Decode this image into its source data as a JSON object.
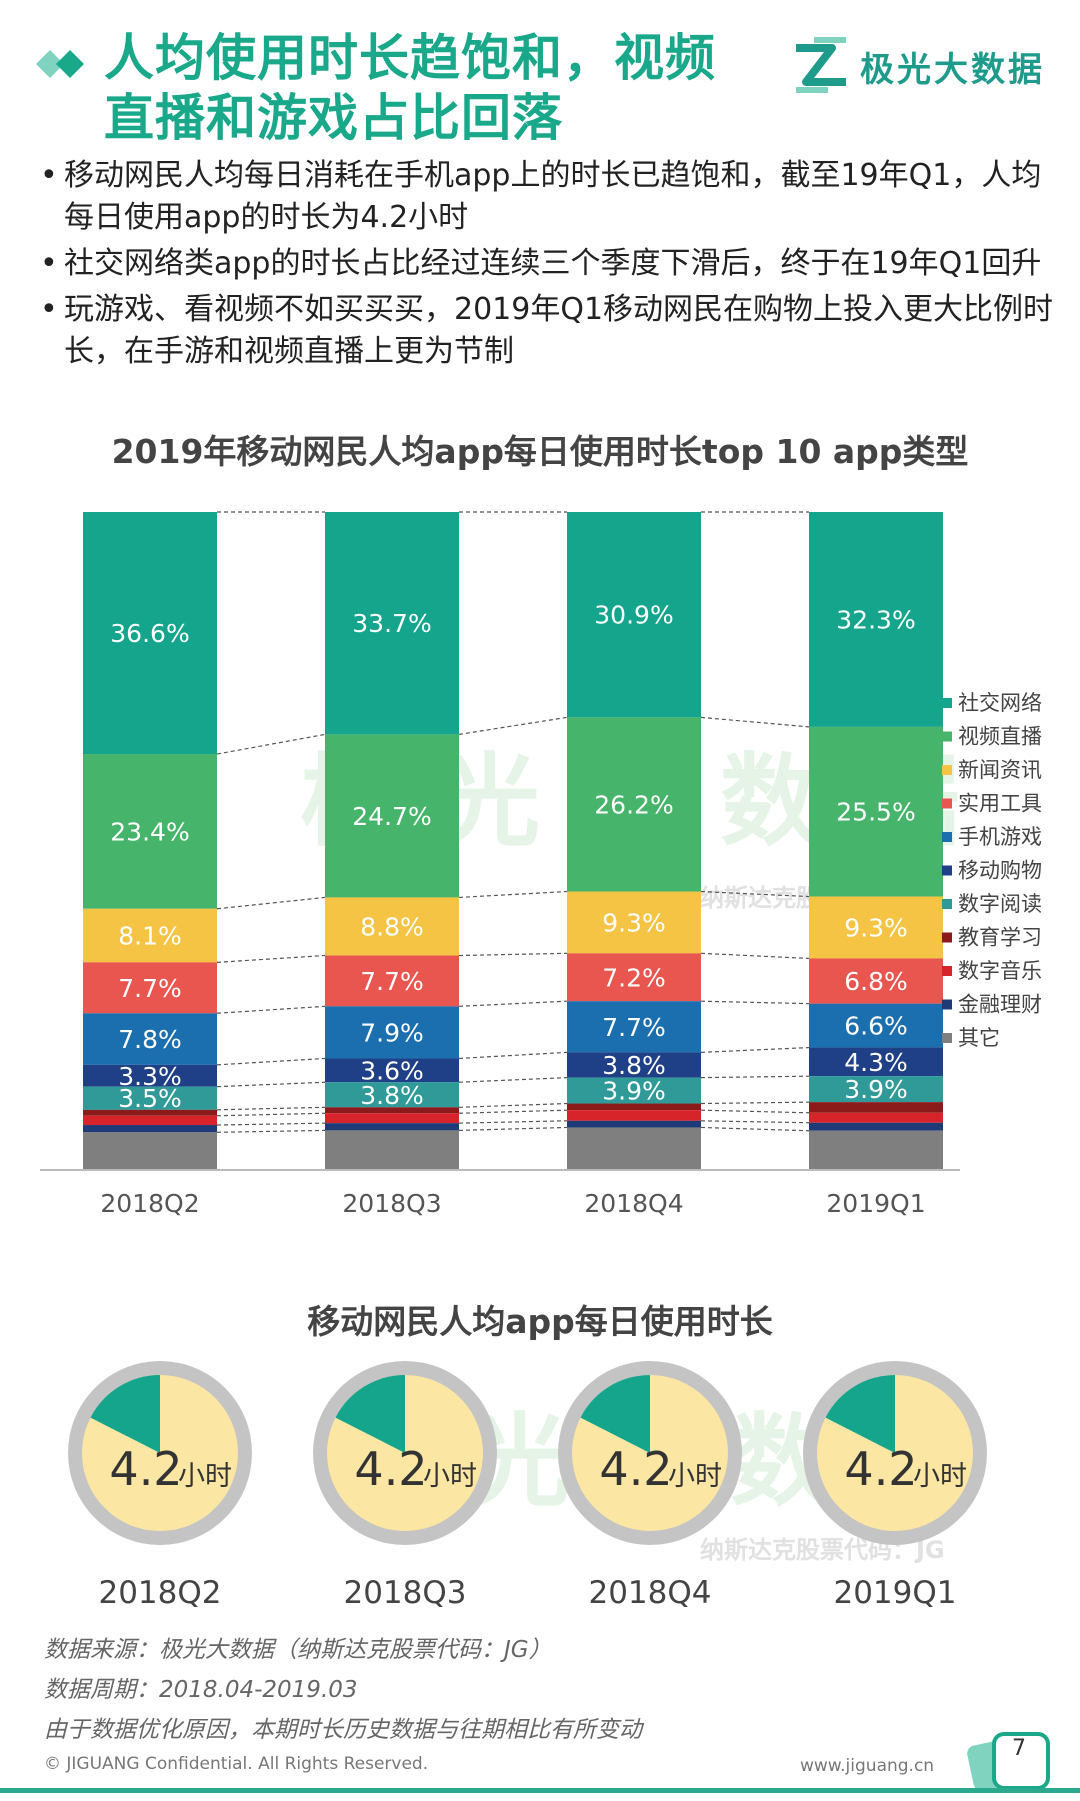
{
  "header": {
    "title_line1": "人均使用时长趋饱和，视频",
    "title_line2": "直播和游戏占比回落",
    "logo_text": "极光大数据",
    "accent_color": "#1aa88b"
  },
  "bullets": [
    "移动网民人均每日消耗在手机app上的时长已趋饱和，截至19年Q1，人均每日使用app的时长为4.2小时",
    "社交网络类app的时长占比经过连续三个季度下滑后，终于在19年Q1回升",
    "玩游戏、看视频不如买买买，2019年Q1移动网民在购物上投入更大比例时长，在手游和视频直播上更为节制"
  ],
  "watermark": {
    "brand": "极光大数据",
    "ticker": "纳斯达克股票代码：JG"
  },
  "chart_data": [
    {
      "type": "bar",
      "stacked": true,
      "title": "2019年移动网民人均app每日使用时长top 10 app类型",
      "categories": [
        "2018Q2",
        "2018Q3",
        "2018Q4",
        "2019Q1"
      ],
      "ylim": [
        0,
        100
      ],
      "legend_position": "right",
      "series": [
        {
          "name": "社交网络",
          "color": "#14a58c",
          "values": [
            36.6,
            33.7,
            30.9,
            32.3
          ],
          "labels": [
            "36.6%",
            "33.7%",
            "30.9%",
            "32.3%"
          ]
        },
        {
          "name": "视频直播",
          "color": "#46b46a",
          "values": [
            23.4,
            24.7,
            26.2,
            25.5
          ],
          "labels": [
            "23.4%",
            "24.7%",
            "26.2%",
            "25.5%"
          ]
        },
        {
          "name": "新闻资讯",
          "color": "#f6c445",
          "values": [
            8.1,
            8.8,
            9.3,
            9.3
          ],
          "labels": [
            "8.1%",
            "8.8%",
            "9.3%",
            "9.3%"
          ]
        },
        {
          "name": "实用工具",
          "color": "#e8564f",
          "values": [
            7.7,
            7.7,
            7.2,
            6.8
          ],
          "labels": [
            "7.7%",
            "7.7%",
            "7.2%",
            "6.8%"
          ]
        },
        {
          "name": "手机游戏",
          "color": "#1c6fae",
          "values": [
            7.8,
            7.9,
            7.7,
            6.6
          ],
          "labels": [
            "7.8%",
            "7.9%",
            "7.7%",
            "6.6%"
          ]
        },
        {
          "name": "移动购物",
          "color": "#1f3f86",
          "values": [
            3.3,
            3.6,
            3.8,
            4.3
          ],
          "labels": [
            "3.3%",
            "3.6%",
            "3.8%",
            "4.3%"
          ]
        },
        {
          "name": "数字阅读",
          "color": "#2f9a98",
          "values": [
            3.5,
            3.8,
            3.9,
            3.9
          ],
          "labels": [
            "3.5%",
            "3.8%",
            "3.9%",
            "3.9%"
          ]
        },
        {
          "name": "教育学习",
          "color": "#8b1a1a",
          "values": [
            0.9,
            0.9,
            1.0,
            1.6
          ],
          "labels": [
            "",
            "",
            "",
            ""
          ]
        },
        {
          "name": "数字音乐",
          "color": "#d7242b",
          "values": [
            1.4,
            1.5,
            1.6,
            1.5
          ],
          "labels": [
            "",
            "",
            "",
            ""
          ]
        },
        {
          "name": "金融理财",
          "color": "#1e3b78",
          "values": [
            1.1,
            1.1,
            1.0,
            1.2
          ],
          "labels": [
            "",
            "",
            "",
            ""
          ]
        },
        {
          "name": "其它",
          "color": "#7f7f7f",
          "values": [
            5.7,
            6.0,
            6.4,
            5.9
          ],
          "labels": [
            "",
            "",
            "",
            ""
          ]
        }
      ]
    },
    {
      "type": "pie",
      "title": "移动网民人均app每日使用时长",
      "categories": [
        "2018Q2",
        "2018Q3",
        "2018Q4",
        "2019Q1"
      ],
      "values": [
        4.2,
        4.2,
        4.2,
        4.2
      ],
      "value_labels": [
        "4.2",
        "4.2",
        "4.2",
        "4.2"
      ],
      "unit": "小时",
      "slice_share": [
        0.175,
        0.175,
        0.175,
        0.175
      ],
      "colors": {
        "slice": "#14a58c",
        "rest": "#fbe6a3",
        "ring": "#c4c4c4"
      }
    }
  ],
  "footer": {
    "source": "数据来源：极光大数据（纳斯达克股票代码：JG）",
    "period": "数据周期：2018.04-2019.03",
    "note": "由于数据优化原因，本期时长历史数据与往期相比有所变动",
    "copyright": "© JIGUANG Confidential. All Rights Reserved.",
    "website": "www.jiguang.cn",
    "page_number": "7"
  }
}
